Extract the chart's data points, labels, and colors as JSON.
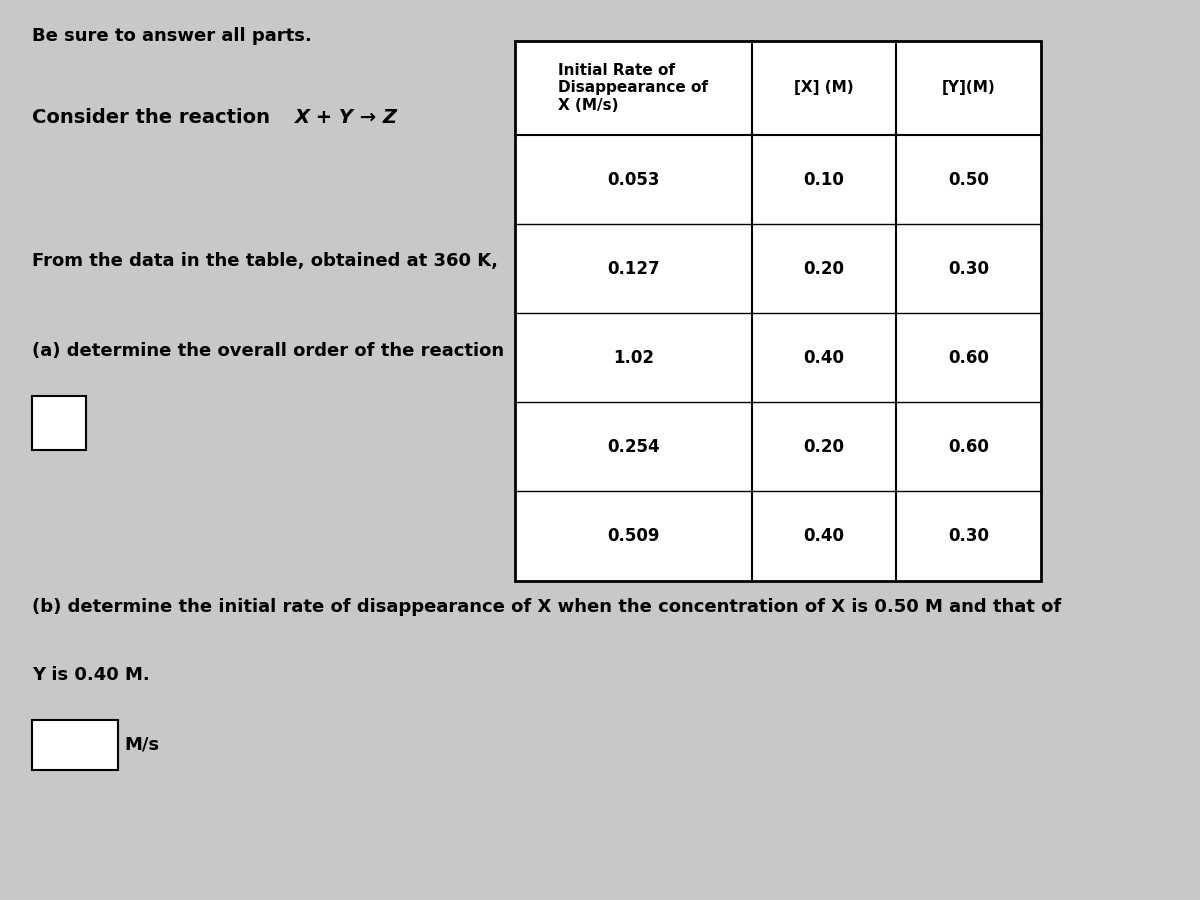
{
  "bg_color": "#c8c8c8",
  "title_text": "Be sure to answer all parts.",
  "col_header_1": "Initial Rate of\nDisappearance of\nX (M/s)",
  "col_header_2": "[X] (M)",
  "col_header_3": "[Y](M)",
  "table_data": [
    [
      "0.053",
      "0.10",
      "0.50"
    ],
    [
      "0.127",
      "0.20",
      "0.30"
    ],
    [
      "1.02",
      "0.40",
      "0.60"
    ],
    [
      "0.254",
      "0.20",
      "0.60"
    ],
    [
      "0.509",
      "0.40",
      "0.30"
    ]
  ]
}
